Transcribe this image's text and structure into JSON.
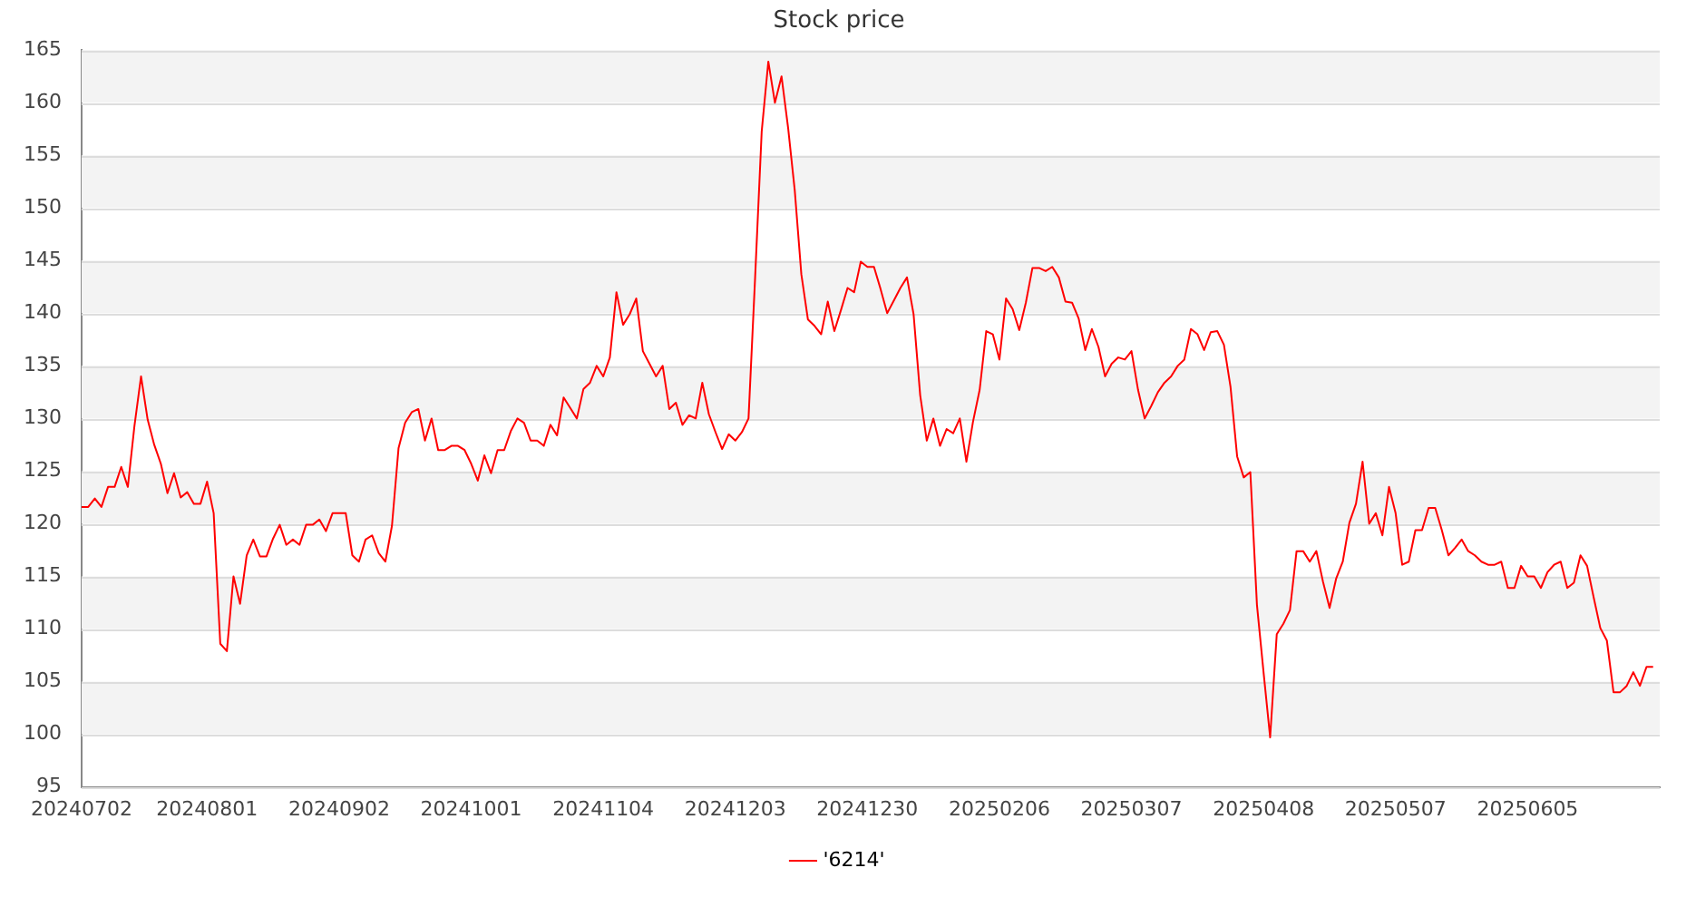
{
  "chart_data": {
    "type": "line",
    "title": "Stock price",
    "categories": [
      "20240702",
      null,
      null,
      null,
      null,
      null,
      null,
      null,
      null,
      null,
      null,
      null,
      null,
      null,
      null,
      null,
      null,
      null,
      null,
      "20240801",
      null,
      null,
      null,
      null,
      null,
      null,
      null,
      null,
      null,
      null,
      null,
      null,
      null,
      null,
      null,
      null,
      null,
      null,
      null,
      "20240902",
      null,
      null,
      null,
      null,
      null,
      null,
      null,
      null,
      null,
      null,
      null,
      null,
      null,
      null,
      null,
      null,
      null,
      null,
      null,
      "20241001",
      null,
      null,
      null,
      null,
      null,
      null,
      null,
      null,
      null,
      null,
      null,
      null,
      null,
      null,
      null,
      null,
      null,
      null,
      null,
      "20241104",
      null,
      null,
      null,
      null,
      null,
      null,
      null,
      null,
      null,
      null,
      null,
      null,
      null,
      null,
      null,
      null,
      null,
      null,
      null,
      "20241203",
      null,
      null,
      null,
      null,
      null,
      null,
      null,
      null,
      null,
      null,
      null,
      null,
      null,
      null,
      null,
      null,
      null,
      null,
      null,
      "20241230",
      null,
      null,
      null,
      null,
      null,
      null,
      null,
      null,
      null,
      null,
      null,
      null,
      null,
      null,
      null,
      null,
      null,
      null,
      null,
      "20250206",
      null,
      null,
      null,
      null,
      null,
      null,
      null,
      null,
      null,
      null,
      null,
      null,
      null,
      null,
      null,
      null,
      null,
      null,
      null,
      "20250307",
      null,
      null,
      null,
      null,
      null,
      null,
      null,
      null,
      null,
      null,
      null,
      null,
      null,
      null,
      null,
      null,
      null,
      null,
      null,
      "20250408",
      null,
      null,
      null,
      null,
      null,
      null,
      null,
      null,
      null,
      null,
      null,
      null,
      null,
      null,
      null,
      null,
      null,
      null,
      null,
      "20250507",
      null,
      null,
      null,
      null,
      null,
      null,
      null,
      null,
      null,
      null,
      null,
      null,
      null,
      null,
      null,
      null,
      null,
      null,
      null,
      "20250605",
      null,
      null,
      null,
      null,
      null,
      null,
      null,
      null,
      null,
      null,
      null,
      null,
      null,
      null,
      null,
      null,
      null,
      null,
      null,
      null
    ],
    "series": [
      {
        "name": "'6214'",
        "color": "#ff0000",
        "values": [
          121.6,
          121.6,
          122.4,
          121.6,
          123.5,
          123.5,
          125.4,
          123.5,
          129.3,
          134.0,
          129.9,
          127.5,
          125.7,
          122.9,
          124.8,
          122.5,
          123.0,
          121.9,
          121.9,
          124.0,
          121.0,
          108.6,
          107.9,
          115.0,
          112.4,
          117.0,
          118.5,
          116.9,
          116.9,
          118.6,
          119.9,
          118.0,
          118.5,
          118.0,
          119.9,
          119.9,
          120.4,
          119.3,
          121.0,
          121.0,
          121.0,
          117.0,
          116.4,
          118.5,
          118.9,
          117.2,
          116.4,
          119.8,
          127.2,
          129.6,
          130.6,
          130.9,
          127.9,
          130.0,
          127.0,
          127.0,
          127.4,
          127.4,
          127.0,
          125.7,
          124.1,
          126.5,
          124.8,
          127.0,
          127.0,
          128.8,
          130.0,
          129.6,
          127.9,
          127.9,
          127.4,
          129.4,
          128.4,
          132.0,
          131.0,
          130.0,
          132.8,
          133.4,
          135.0,
          134.0,
          135.8,
          142.0,
          138.9,
          139.9,
          141.4,
          136.4,
          135.2,
          134.0,
          135.0,
          130.9,
          131.5,
          129.4,
          130.3,
          130.0,
          133.4,
          130.4,
          128.7,
          127.1,
          128.5,
          127.9,
          128.7,
          130.0,
          143.4,
          157.3,
          163.9,
          160.0,
          162.5,
          157.6,
          151.7,
          143.7,
          139.4,
          138.8,
          138.0,
          141.1,
          138.3,
          140.3,
          142.4,
          142.0,
          144.9,
          144.4,
          144.4,
          142.3,
          140.0,
          141.2,
          142.4,
          143.4,
          139.9,
          132.2,
          127.9,
          130.0,
          127.4,
          129.0,
          128.6,
          130.0,
          125.9,
          129.7,
          132.7,
          138.3,
          138.0,
          135.6,
          141.4,
          140.4,
          138.4,
          141.0,
          144.3,
          144.3,
          144.0,
          144.4,
          143.4,
          141.1,
          141.0,
          139.5,
          136.5,
          138.5,
          136.8,
          134.0,
          135.2,
          135.8,
          135.6,
          136.4,
          132.7,
          130.0,
          131.2,
          132.5,
          133.4,
          134.0,
          135.0,
          135.6,
          138.5,
          138.0,
          136.5,
          138.2,
          138.3,
          137.0,
          133.0,
          126.4,
          124.4,
          124.9,
          112.3,
          105.9,
          99.7,
          109.5,
          110.5,
          111.8,
          117.4,
          117.4,
          116.4,
          117.4,
          114.5,
          112.0,
          114.8,
          116.4,
          120.1,
          121.9,
          125.9,
          120.0,
          121.0,
          118.9,
          123.5,
          121.0,
          116.1,
          116.4,
          119.4,
          119.4,
          121.5,
          121.5,
          119.4,
          117.0,
          117.7,
          118.5,
          117.4,
          117.0,
          116.4,
          116.1,
          116.1,
          116.4,
          113.9,
          113.9,
          116.0,
          115.0,
          115.0,
          113.9,
          115.4,
          116.1,
          116.4,
          113.9,
          114.4,
          117.0,
          116.0,
          113.0,
          110.1,
          108.9,
          104.0,
          104.0,
          104.6,
          105.9,
          104.6,
          106.4,
          106.4,
          null
        ]
      }
    ],
    "ylim": [
      95,
      165
    ],
    "yticks": [
      95,
      100,
      105,
      110,
      115,
      120,
      125,
      130,
      135,
      140,
      145,
      150,
      155,
      160,
      165
    ],
    "grid": "y",
    "legend": "bottom",
    "marker": "none",
    "line_style": "solid"
  }
}
